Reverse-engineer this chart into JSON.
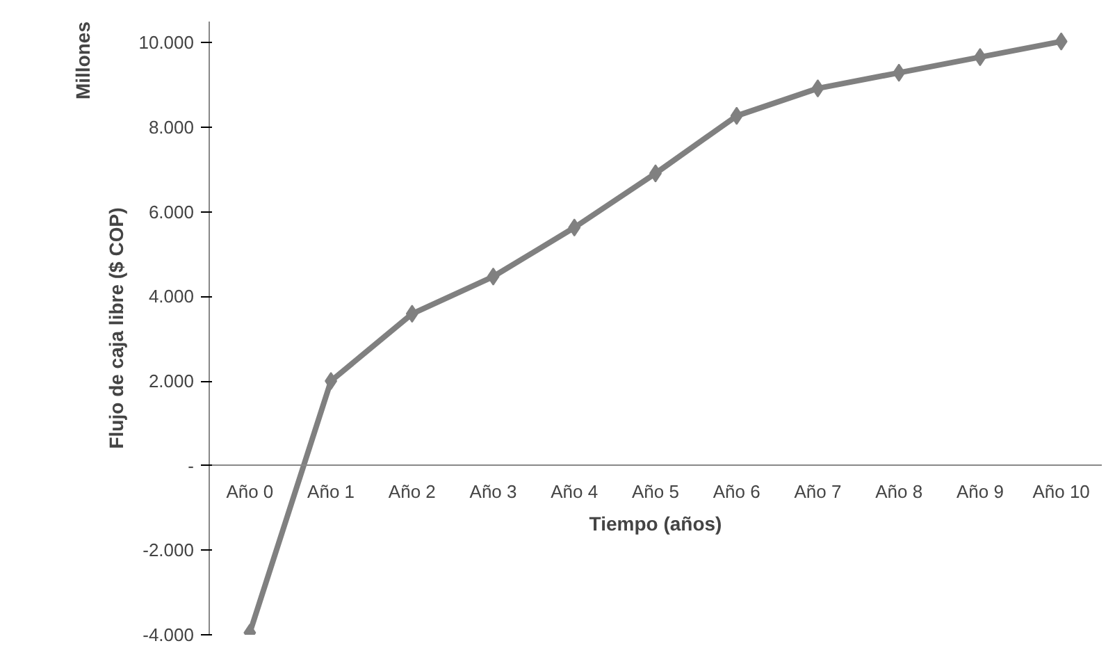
{
  "chart_data": {
    "type": "line",
    "xlabel": "Tiempo (años)",
    "ylabel": "Flujo de caja libre ($ COP)",
    "annotations": [
      "Millones"
    ],
    "categories": [
      "Año 0",
      "Año 1",
      "Año 2",
      "Año 3",
      "Año 4",
      "Año 5",
      "Año 6",
      "Año 7",
      "Año 8",
      "Año 9",
      "Año 10"
    ],
    "series": [
      {
        "color": "#808080",
        "values": [
          -3950,
          2000,
          3590,
          4470,
          5630,
          6910,
          8270,
          8920,
          9290,
          9660,
          10030
        ]
      }
    ],
    "ylim": [
      -4000,
      10500
    ],
    "yticks": [
      {
        "value": -4000,
        "label": "-4.000"
      },
      {
        "value": -2000,
        "label": "-2.000"
      },
      {
        "value": 0,
        "label": "-"
      },
      {
        "value": 2000,
        "label": "2.000"
      },
      {
        "value": 4000,
        "label": "4.000"
      },
      {
        "value": 6000,
        "label": "6.000"
      },
      {
        "value": 8000,
        "label": "8.000"
      },
      {
        "value": 10000,
        "label": "10.000"
      }
    ],
    "marker": "diamond",
    "line_style": "solid",
    "grid": false
  }
}
